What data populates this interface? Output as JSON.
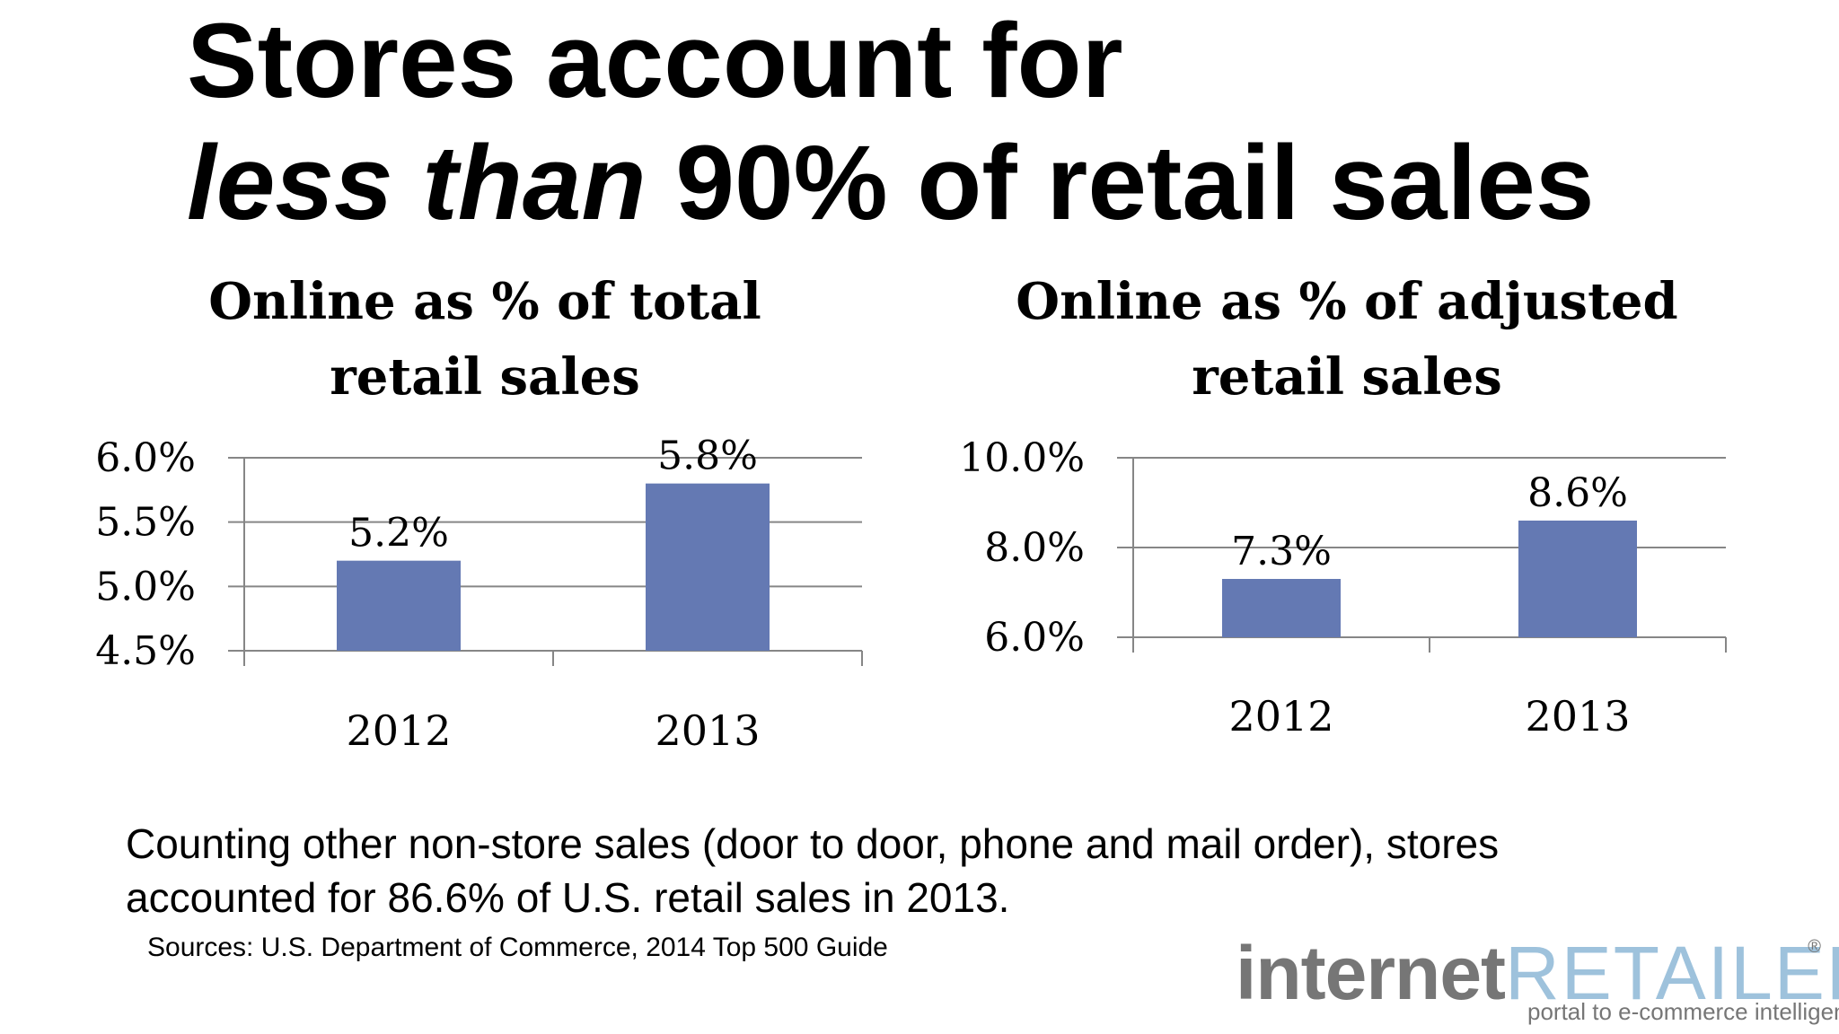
{
  "headline": {
    "line1": "Stores account for",
    "line2_italic": "less than",
    "line2_rest": " 90% of retail sales"
  },
  "chart_data": [
    {
      "type": "bar",
      "title": "Online as % of total retail sales",
      "title_line1": "Online as % of total",
      "title_line2": "retail sales",
      "categories": [
        "2012",
        "2013"
      ],
      "values": [
        5.2,
        5.8
      ],
      "value_labels": [
        "5.2%",
        "5.8%"
      ],
      "yticks": [
        4.5,
        5.0,
        5.5,
        6.0
      ],
      "ytick_labels": [
        "4.5%",
        "5.0%",
        "5.5%",
        "6.0%"
      ],
      "ylim": [
        4.5,
        6.0
      ],
      "xlabel": "",
      "ylabel": "",
      "grid": true,
      "bar_color": "#6479b3"
    },
    {
      "type": "bar",
      "title": "Online as % of adjusted retail sales",
      "title_line1": "Online as % of adjusted",
      "title_line2": "retail sales",
      "categories": [
        "2012",
        "2013"
      ],
      "values": [
        7.3,
        8.6
      ],
      "value_labels": [
        "7.3%",
        "8.6%"
      ],
      "yticks": [
        6.0,
        8.0,
        10.0
      ],
      "ytick_labels": [
        "6.0%",
        "8.0%",
        "10.0%"
      ],
      "ylim": [
        6.0,
        10.0
      ],
      "xlabel": "",
      "ylabel": "",
      "grid": true,
      "bar_color": "#6479b3"
    }
  ],
  "note": {
    "line1": "Counting other non-store sales (door to door, phone and mail order), stores",
    "line2": "accounted for 86.6% of U.S. retail sales in 2013."
  },
  "sources": "Sources: U.S. Department of Commerce, 2014 Top 500 Guide",
  "logo": {
    "internet": "internet",
    "retailer": "RETAILER",
    "registered": "®",
    "tagline": "portal to e-commerce intelligence"
  },
  "colors": {
    "bar": "#6479b3",
    "grid": "#868686",
    "logo_gray": "#767676",
    "logo_blue": "#9ec2dc"
  }
}
